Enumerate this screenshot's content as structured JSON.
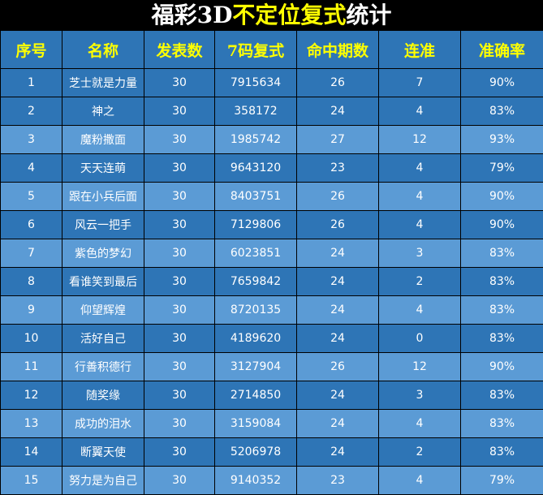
{
  "title": {
    "part1": "福彩3D",
    "part2": "不定位复式",
    "part3": "统计"
  },
  "colors": {
    "header_bg": "#2e75b6",
    "row_dark": "#2e75b6",
    "row_light": "#5b9bd5",
    "header_text": "#ffff00",
    "title_highlight": "#ffff00"
  },
  "headers": [
    "序号",
    "名称",
    "发表数",
    "7码复式",
    "命中期数",
    "连准",
    "准确率"
  ],
  "rows": [
    [
      "1",
      "芝士就是力量",
      "30",
      "7915634",
      "26",
      "7",
      "90%"
    ],
    [
      "2",
      "神之",
      "30",
      "358172",
      "24",
      "4",
      "83%"
    ],
    [
      "3",
      "魔粉撒面",
      "30",
      "1985742",
      "27",
      "12",
      "93%"
    ],
    [
      "4",
      "天天连萌",
      "30",
      "9643120",
      "23",
      "4",
      "79%"
    ],
    [
      "5",
      "跟在小兵后面",
      "30",
      "8403751",
      "26",
      "4",
      "90%"
    ],
    [
      "6",
      "风云一把手",
      "30",
      "7129806",
      "26",
      "4",
      "90%"
    ],
    [
      "7",
      "紫色的梦幻",
      "30",
      "6023851",
      "24",
      "3",
      "83%"
    ],
    [
      "8",
      "看谁笑到最后",
      "30",
      "7659842",
      "24",
      "2",
      "83%"
    ],
    [
      "9",
      "仰望辉煌",
      "30",
      "8720135",
      "24",
      "4",
      "83%"
    ],
    [
      "10",
      "活好自己",
      "30",
      "4189620",
      "24",
      "0",
      "83%"
    ],
    [
      "11",
      "行善积德行",
      "30",
      "3127904",
      "26",
      "12",
      "90%"
    ],
    [
      "12",
      "随奖缘",
      "30",
      "2714850",
      "24",
      "3",
      "83%"
    ],
    [
      "13",
      "成功的泪水",
      "30",
      "3159084",
      "24",
      "4",
      "83%"
    ],
    [
      "14",
      "断翼天使",
      "30",
      "5206978",
      "24",
      "2",
      "83%"
    ],
    [
      "15",
      "努力是为自己",
      "30",
      "9140352",
      "23",
      "4",
      "79%"
    ]
  ]
}
